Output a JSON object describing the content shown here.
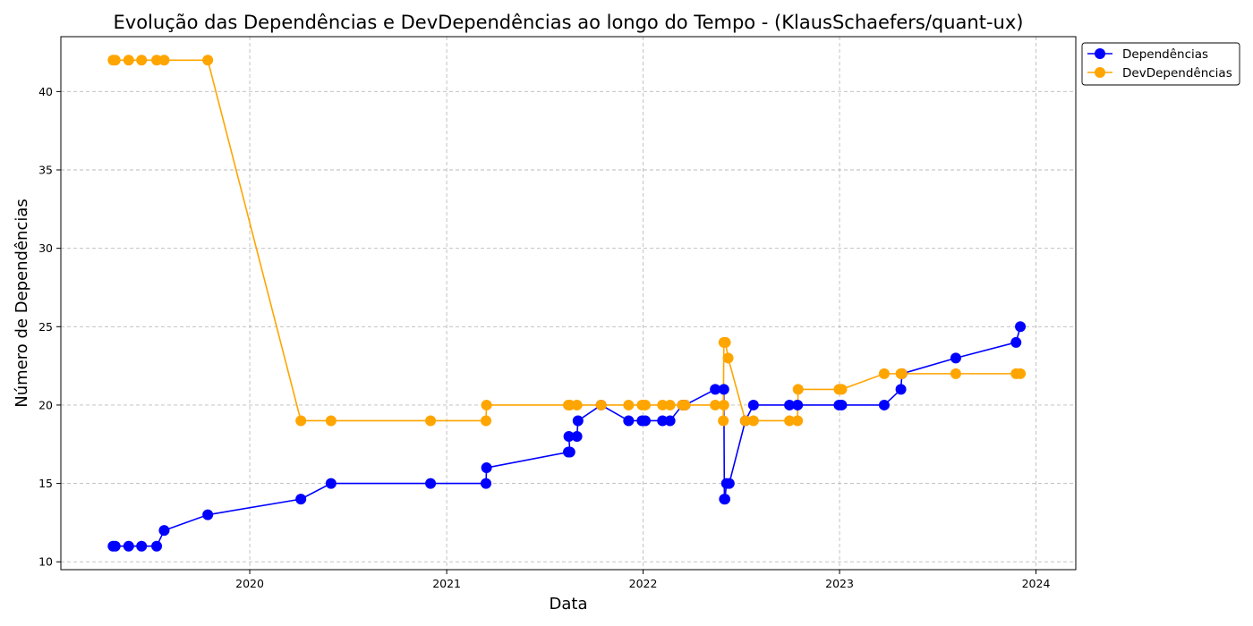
{
  "chart_data": {
    "type": "line",
    "title": "Evolução das Dependências e DevDependências ao longo do Tempo - (KlausSchaefers/quant-ux)",
    "xlabel": "Data",
    "ylabel": "Número de Dependências",
    "xlim": [
      "2019-01-15",
      "2024-03-15"
    ],
    "ylim": [
      9.5,
      43.5
    ],
    "x_ticks": [
      {
        "date": "2020-01-01",
        "label": "2020"
      },
      {
        "date": "2021-01-01",
        "label": "2021"
      },
      {
        "date": "2022-01-01",
        "label": "2022"
      },
      {
        "date": "2023-01-01",
        "label": "2023"
      },
      {
        "date": "2024-01-01",
        "label": "2024"
      }
    ],
    "y_ticks": [
      10,
      15,
      20,
      25,
      30,
      35,
      40
    ],
    "grid": true,
    "legend_position": "upper right, outside plot",
    "series": [
      {
        "name": "Dependências",
        "color": "#0000ff",
        "points": [
          [
            "2019-04-22",
            11
          ],
          [
            "2019-04-26",
            11
          ],
          [
            "2019-05-21",
            11
          ],
          [
            "2019-06-14",
            11
          ],
          [
            "2019-07-12",
            11
          ],
          [
            "2019-07-26",
            12
          ],
          [
            "2019-10-15",
            13
          ],
          [
            "2020-04-05",
            14
          ],
          [
            "2020-05-31",
            15
          ],
          [
            "2020-12-02",
            15
          ],
          [
            "2021-03-15",
            15
          ],
          [
            "2021-03-16",
            16
          ],
          [
            "2021-08-15",
            17
          ],
          [
            "2021-08-18",
            17
          ],
          [
            "2021-08-16",
            18
          ],
          [
            "2021-08-31",
            18
          ],
          [
            "2021-09-02",
            19
          ],
          [
            "2021-10-15",
            20
          ],
          [
            "2021-12-05",
            19
          ],
          [
            "2021-12-30",
            19
          ],
          [
            "2022-01-05",
            19
          ],
          [
            "2022-02-06",
            19
          ],
          [
            "2022-02-20",
            19
          ],
          [
            "2022-03-15",
            20
          ],
          [
            "2022-03-20",
            20
          ],
          [
            "2022-05-15",
            21
          ],
          [
            "2022-05-31",
            21
          ],
          [
            "2022-06-01",
            14
          ],
          [
            "2022-06-02",
            14
          ],
          [
            "2022-06-05",
            15
          ],
          [
            "2022-06-10",
            15
          ],
          [
            "2022-07-10",
            19
          ],
          [
            "2022-07-25",
            20
          ],
          [
            "2022-09-30",
            20
          ],
          [
            "2022-10-15",
            20
          ],
          [
            "2022-12-31",
            20
          ],
          [
            "2023-01-05",
            20
          ],
          [
            "2023-03-25",
            20
          ],
          [
            "2023-04-25",
            21
          ],
          [
            "2023-04-27",
            22
          ],
          [
            "2023-08-05",
            23
          ],
          [
            "2023-11-25",
            24
          ],
          [
            "2023-12-03",
            25
          ]
        ]
      },
      {
        "name": "DevDependências",
        "color": "#ffa500",
        "points": [
          [
            "2019-04-22",
            42
          ],
          [
            "2019-04-26",
            42
          ],
          [
            "2019-05-21",
            42
          ],
          [
            "2019-06-14",
            42
          ],
          [
            "2019-07-12",
            42
          ],
          [
            "2019-07-26",
            42
          ],
          [
            "2019-10-15",
            42
          ],
          [
            "2020-04-05",
            19
          ],
          [
            "2020-05-31",
            19
          ],
          [
            "2020-12-02",
            19
          ],
          [
            "2021-03-15",
            19
          ],
          [
            "2021-03-16",
            20
          ],
          [
            "2021-08-15",
            20
          ],
          [
            "2021-08-18",
            20
          ],
          [
            "2021-08-31",
            20
          ],
          [
            "2021-10-15",
            20
          ],
          [
            "2021-12-05",
            20
          ],
          [
            "2021-12-30",
            20
          ],
          [
            "2022-01-05",
            20
          ],
          [
            "2022-02-06",
            20
          ],
          [
            "2022-02-20",
            20
          ],
          [
            "2022-03-15",
            20
          ],
          [
            "2022-03-20",
            20
          ],
          [
            "2022-05-15",
            20
          ],
          [
            "2022-05-31",
            20
          ],
          [
            "2022-05-30",
            19
          ],
          [
            "2022-05-31",
            24
          ],
          [
            "2022-06-03",
            24
          ],
          [
            "2022-06-08",
            23
          ],
          [
            "2022-07-10",
            19
          ],
          [
            "2022-07-25",
            19
          ],
          [
            "2022-09-30",
            19
          ],
          [
            "2022-10-15",
            19
          ],
          [
            "2022-10-16",
            21
          ],
          [
            "2022-12-31",
            21
          ],
          [
            "2023-01-05",
            21
          ],
          [
            "2023-03-25",
            22
          ],
          [
            "2023-04-25",
            22
          ],
          [
            "2023-04-27",
            22
          ],
          [
            "2023-08-05",
            22
          ],
          [
            "2023-11-25",
            22
          ],
          [
            "2023-12-03",
            22
          ]
        ]
      }
    ]
  }
}
